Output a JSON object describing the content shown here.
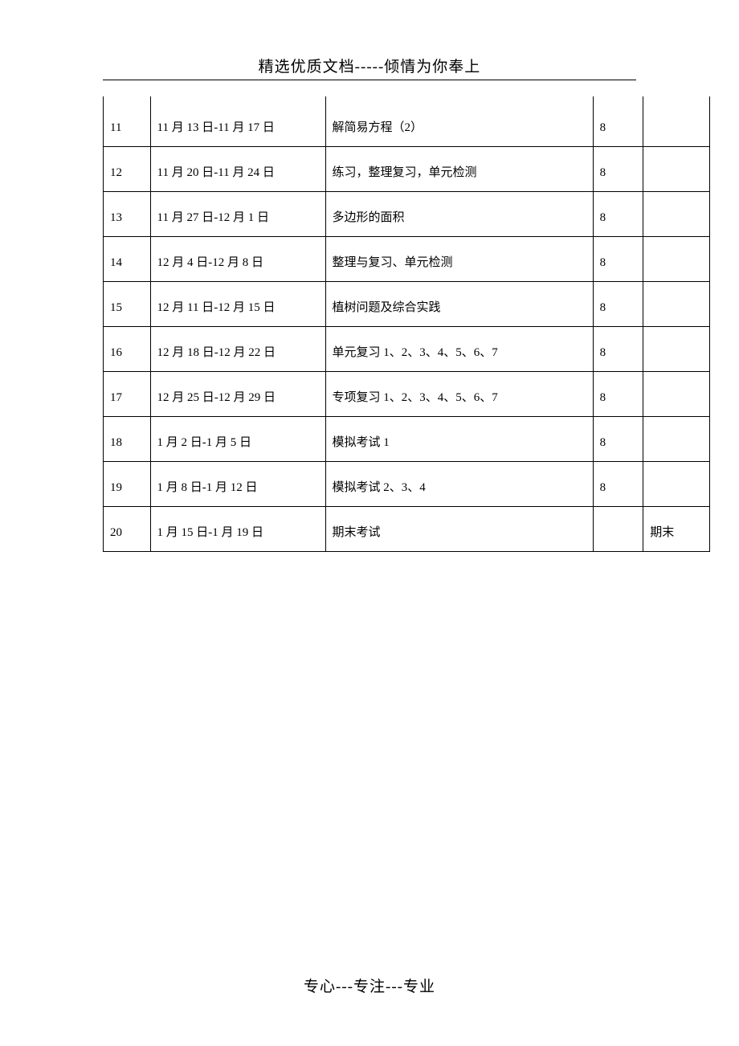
{
  "header": {
    "text": "精选优质文档-----倾情为你奉上"
  },
  "table": {
    "columns": {
      "num_width": 58,
      "date_width": 216,
      "content_width": 330,
      "hours_width": 62,
      "note_width": 82
    },
    "rows": [
      {
        "num": "11",
        "date": "11 月 13 日-11 月 17 日",
        "content": "解简易方程（2）",
        "hours": "8",
        "note": ""
      },
      {
        "num": "12",
        "date": "11 月 20 日-11 月 24 日",
        "content": "练习，整理复习，单元检测",
        "hours": "8",
        "note": ""
      },
      {
        "num": "13",
        "date": "11 月 27 日-12 月 1 日",
        "content": "多边形的面积",
        "hours": "8",
        "note": ""
      },
      {
        "num": "14",
        "date": "12 月 4 日-12 月 8 日",
        "content": "整理与复习、单元检测",
        "hours": "8",
        "note": ""
      },
      {
        "num": "15",
        "date": "12 月 11 日-12 月 15 日",
        "content": "植树问题及综合实践",
        "hours": "8",
        "note": ""
      },
      {
        "num": "16",
        "date": "12 月 18 日-12 月 22 日",
        "content": "单元复习 1、2、3、4、5、6、7",
        "hours": "8",
        "note": ""
      },
      {
        "num": "17",
        "date": "12 月 25 日-12 月 29 日",
        "content": "专项复习 1、2、3、4、5、6、7",
        "hours": "8",
        "note": ""
      },
      {
        "num": "18",
        "date": "1 月 2 日-1 月 5 日",
        "content": "模拟考试 1",
        "hours": "8",
        "note": ""
      },
      {
        "num": "19",
        "date": "1 月 8 日-1 月 12 日",
        "content": "模拟考试 2、3、4",
        "hours": "8",
        "note": ""
      },
      {
        "num": "20",
        "date": "1 月 15 日-1 月 19 日",
        "content": "期末考试",
        "hours": "",
        "note": "期末"
      }
    ]
  },
  "footer": {
    "text": "专心---专注---专业"
  },
  "colors": {
    "background": "#ffffff",
    "text": "#000000",
    "border": "#000000"
  },
  "typography": {
    "header_fontsize": 19,
    "footer_fontsize": 19,
    "cell_fontsize": 15,
    "font_family": "SimSun"
  }
}
